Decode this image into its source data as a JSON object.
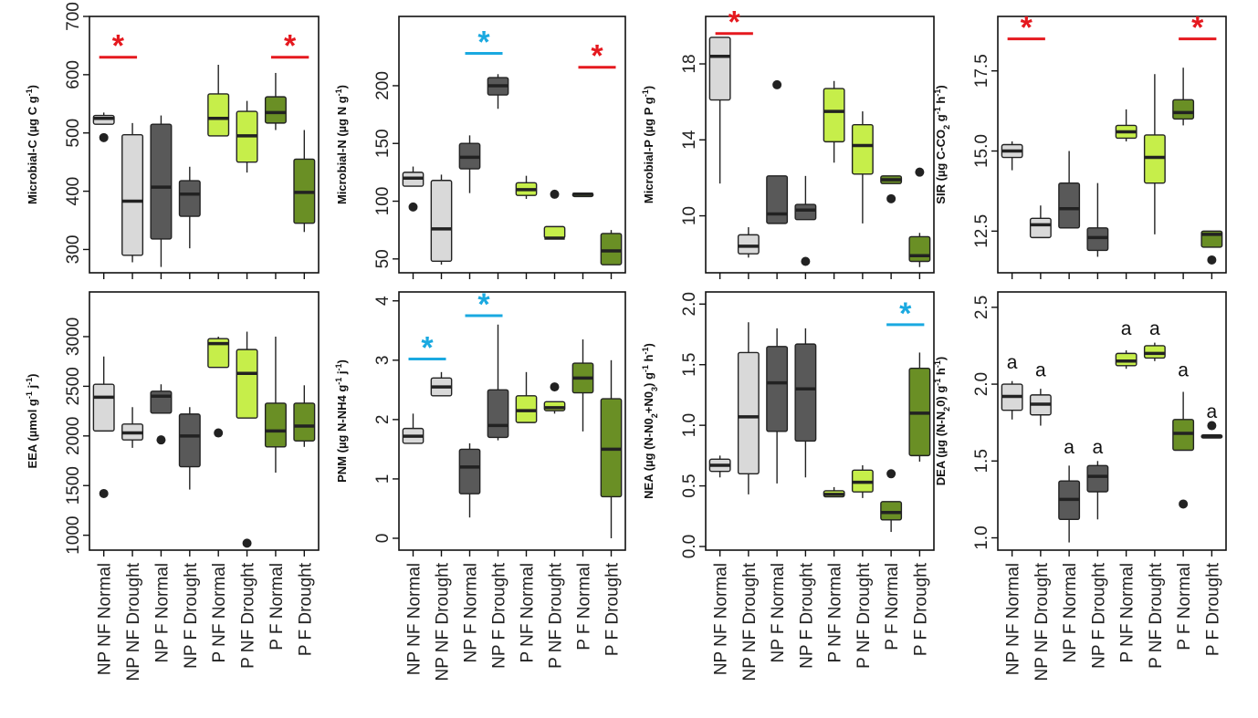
{
  "colors": {
    "NP NF": "#d9d9d9",
    "NP F": "#595959",
    "P NF": "#c6ee4a",
    "P F": "#6a8f25",
    "red": "#e5191f",
    "blue": "#1aa9e0"
  },
  "chart_data": [
    {
      "type": "box",
      "ylabel": {
        "pre": "Microbial-C (µg C g",
        "sup": "-1",
        "post": ")"
      },
      "ylim": [
        260,
        700
      ],
      "yticks": [
        "300",
        "400",
        "500",
        "600",
        "700"
      ],
      "categories": [
        "NP NF Normal",
        "NP NF Drought",
        "NP F Normal",
        "NP F Drought",
        "P NF Normal",
        "P NF Drought",
        "P F Normal",
        "P F Drought"
      ],
      "groups": [
        "NP NF",
        "NP NF",
        "NP F",
        "NP F",
        "P NF",
        "P NF",
        "P F",
        "P F"
      ],
      "boxes": [
        {
          "min": 515,
          "q1": 515,
          "median": 525,
          "q3": 530,
          "max": 535,
          "outliers": [
            492
          ]
        },
        {
          "min": 278,
          "q1": 290,
          "median": 383,
          "q3": 497,
          "max": 517,
          "outliers": []
        },
        {
          "min": 270,
          "q1": 318,
          "median": 407,
          "q3": 515,
          "max": 530,
          "outliers": []
        },
        {
          "min": 302,
          "q1": 357,
          "median": 395,
          "q3": 418,
          "max": 442,
          "outliers": []
        },
        {
          "min": 495,
          "q1": 495,
          "median": 525,
          "q3": 567,
          "max": 617,
          "outliers": []
        },
        {
          "min": 432,
          "q1": 450,
          "median": 495,
          "q3": 537,
          "max": 555,
          "outliers": []
        },
        {
          "min": 505,
          "q1": 517,
          "median": 535,
          "q3": 562,
          "max": 603,
          "outliers": []
        },
        {
          "min": 330,
          "q1": 345,
          "median": 398,
          "q3": 455,
          "max": 505,
          "outliers": []
        }
      ],
      "annotations": [
        {
          "type": "star",
          "color": "red",
          "text": "*",
          "pair": [
            0,
            1
          ],
          "y": 630
        },
        {
          "type": "star",
          "color": "red",
          "text": "*",
          "pair": [
            6,
            7
          ],
          "y": 630
        }
      ]
    },
    {
      "type": "box",
      "ylabel": {
        "pre": "Microbial-N (µg N g",
        "sup": "-1",
        "post": ")"
      },
      "ylim": [
        38,
        260
      ],
      "yticks": [
        "50",
        "100",
        "150",
        "200"
      ],
      "categories": [
        "NP NF Normal",
        "NP NF Drought",
        "NP F Normal",
        "NP F Drought",
        "P NF Normal",
        "P NF Drought",
        "P F Normal",
        "P F Drought"
      ],
      "groups": [
        "NP NF",
        "NP NF",
        "NP F",
        "NP F",
        "P NF",
        "P NF",
        "P F",
        "P F"
      ],
      "boxes": [
        {
          "min": 113,
          "q1": 113,
          "median": 120,
          "q3": 125,
          "max": 130,
          "outliers": [
            95
          ]
        },
        {
          "min": 45,
          "q1": 48,
          "median": 76,
          "q3": 118,
          "max": 123,
          "outliers": []
        },
        {
          "min": 107,
          "q1": 128,
          "median": 138,
          "q3": 150,
          "max": 157,
          "outliers": []
        },
        {
          "min": 180,
          "q1": 192,
          "median": 200,
          "q3": 207,
          "max": 210,
          "outliers": []
        },
        {
          "min": 102,
          "q1": 105,
          "median": 110,
          "q3": 116,
          "max": 122,
          "outliers": []
        },
        {
          "min": 68,
          "q1": 68,
          "median": 68,
          "q3": 78,
          "max": 78,
          "outliers": [
            106
          ]
        },
        {
          "min": 104,
          "q1": 104,
          "median": 106,
          "q3": 107,
          "max": 107,
          "outliers": []
        },
        {
          "min": 45,
          "q1": 45,
          "median": 57,
          "q3": 72,
          "max": 75,
          "outliers": []
        }
      ],
      "annotations": [
        {
          "type": "star",
          "color": "blue",
          "text": "*",
          "pair": [
            2,
            3
          ],
          "y": 228
        },
        {
          "type": "star",
          "color": "red",
          "text": "*",
          "pair": [
            6,
            7
          ],
          "y": 216
        }
      ]
    },
    {
      "type": "box",
      "ylabel": {
        "pre": "Microbial-P (µg P g",
        "sup": "-1",
        "post": ")"
      },
      "ylim": [
        7,
        20.5
      ],
      "yticks": [
        "10",
        "14",
        "18"
      ],
      "categories": [
        "NP NF Normal",
        "NP NF Drought",
        "NP F Normal",
        "NP F Drought",
        "P NF Normal",
        "P NF Drought",
        "P F Normal",
        "P F Drought"
      ],
      "groups": [
        "NP NF",
        "NP NF",
        "NP F",
        "NP F",
        "P NF",
        "P NF",
        "P F",
        "P F"
      ],
      "boxes": [
        {
          "min": 11.7,
          "q1": 16.1,
          "median": 18.4,
          "q3": 19.4,
          "max": 19.4,
          "outliers": []
        },
        {
          "min": 7.8,
          "q1": 8.0,
          "median": 8.4,
          "q3": 9.0,
          "max": 9.4,
          "outliers": []
        },
        {
          "min": 9.6,
          "q1": 9.6,
          "median": 10.1,
          "q3": 12.1,
          "max": 12.1,
          "outliers": [
            16.9
          ]
        },
        {
          "min": 9.8,
          "q1": 9.8,
          "median": 10.3,
          "q3": 10.6,
          "max": 12.1,
          "outliers": [
            7.6
          ]
        },
        {
          "min": 12.8,
          "q1": 13.9,
          "median": 15.5,
          "q3": 16.7,
          "max": 17.1,
          "outliers": []
        },
        {
          "min": 9.6,
          "q1": 12.2,
          "median": 13.7,
          "q3": 14.8,
          "max": 15.5,
          "outliers": []
        },
        {
          "min": 11.7,
          "q1": 11.7,
          "median": 11.9,
          "q3": 12.1,
          "max": 12.1,
          "outliers": [
            10.9
          ]
        },
        {
          "min": 7.3,
          "q1": 7.6,
          "median": 7.9,
          "q3": 8.9,
          "max": 9.1,
          "outliers": [
            12.3
          ]
        }
      ],
      "annotations": [
        {
          "type": "star",
          "color": "red",
          "text": "*",
          "pair": [
            0,
            1
          ],
          "y": 19.6
        }
      ]
    },
    {
      "type": "box",
      "ylabel": {
        "pre": "SIR (µg C-CO",
        "sub": "2",
        "mid": " g",
        "sup": "-1",
        "mid2": " h",
        "sup2": "-1",
        "post": ")"
      },
      "ylim": [
        11.2,
        19.2
      ],
      "yticks": [
        "12.5",
        "15.0",
        "17.5"
      ],
      "categories": [
        "NP NF Normal",
        "NP NF Drought",
        "NP F Normal",
        "NP F Drought",
        "P NF Normal",
        "P NF Drought",
        "P F Normal",
        "P F Drought"
      ],
      "groups": [
        "NP NF",
        "NP NF",
        "NP F",
        "NP F",
        "P NF",
        "P NF",
        "P F",
        "P F"
      ],
      "boxes": [
        {
          "min": 14.4,
          "q1": 14.8,
          "median": 15.0,
          "q3": 15.2,
          "max": 15.3,
          "outliers": []
        },
        {
          "min": 12.3,
          "q1": 12.3,
          "median": 12.7,
          "q3": 12.9,
          "max": 13.3,
          "outliers": []
        },
        {
          "min": 12.6,
          "q1": 12.6,
          "median": 13.2,
          "q3": 14.0,
          "max": 15.0,
          "outliers": []
        },
        {
          "min": 11.7,
          "q1": 11.9,
          "median": 12.3,
          "q3": 12.6,
          "max": 14.0,
          "outliers": []
        },
        {
          "min": 15.3,
          "q1": 15.4,
          "median": 15.6,
          "q3": 15.8,
          "max": 16.3,
          "outliers": []
        },
        {
          "min": 12.4,
          "q1": 14.0,
          "median": 14.8,
          "q3": 15.5,
          "max": 17.4,
          "outliers": []
        },
        {
          "min": 15.8,
          "q1": 16.0,
          "median": 16.2,
          "q3": 16.6,
          "max": 17.6,
          "outliers": []
        },
        {
          "min": 12.0,
          "q1": 12.0,
          "median": 12.4,
          "q3": 12.5,
          "max": 12.5,
          "outliers": [
            11.6
          ]
        }
      ],
      "annotations": [
        {
          "type": "star",
          "color": "red",
          "text": "*",
          "pair": [
            0,
            1
          ],
          "y": 18.5
        },
        {
          "type": "star",
          "color": "red",
          "text": "*",
          "pair": [
            6,
            7
          ],
          "y": 18.5
        }
      ]
    },
    {
      "type": "box",
      "ylabel": {
        "pre": "EEA (µmol g",
        "sup": "-1",
        "mid": " j",
        "sup2": "-1",
        "post": ")"
      },
      "ylim": [
        850,
        3450
      ],
      "yticks": [
        "1000",
        "1500",
        "2000",
        "2500",
        "3000"
      ],
      "categories": [
        "NP NF Normal",
        "NP NF Drought",
        "NP F Normal",
        "NP F Drought",
        "P NF Normal",
        "P NF Drought",
        "P F Normal",
        "P F Drought"
      ],
      "groups": [
        "NP NF",
        "NP NF",
        "NP F",
        "NP F",
        "P NF",
        "P NF",
        "P F",
        "P F"
      ],
      "boxes": [
        {
          "min": 2050,
          "q1": 2050,
          "median": 2390,
          "q3": 2520,
          "max": 2800,
          "outliers": [
            1420
          ]
        },
        {
          "min": 1880,
          "q1": 1960,
          "median": 2030,
          "q3": 2120,
          "max": 2290,
          "outliers": []
        },
        {
          "min": 2230,
          "q1": 2230,
          "median": 2400,
          "q3": 2450,
          "max": 2520,
          "outliers": [
            1960
          ]
        },
        {
          "min": 1460,
          "q1": 1690,
          "median": 2000,
          "q3": 2220,
          "max": 2290,
          "outliers": []
        },
        {
          "min": 2690,
          "q1": 2690,
          "median": 2930,
          "q3": 2980,
          "max": 3000,
          "outliers": [
            2030
          ]
        },
        {
          "min": 2180,
          "q1": 2180,
          "median": 2630,
          "q3": 2870,
          "max": 3050,
          "outliers": [
            920
          ]
        },
        {
          "min": 1630,
          "q1": 1890,
          "median": 2050,
          "q3": 2330,
          "max": 3000,
          "outliers": []
        },
        {
          "min": 1890,
          "q1": 1950,
          "median": 2100,
          "q3": 2330,
          "max": 2510,
          "outliers": []
        }
      ],
      "annotations": []
    },
    {
      "type": "box",
      "ylabel": {
        "pre": "PNM (µg N-NH4 g",
        "sup": "-1",
        "mid": " j",
        "sup2": "-1",
        "post": ")"
      },
      "ylim": [
        -0.2,
        4.15
      ],
      "yticks": [
        "0",
        "1",
        "2",
        "3",
        "4"
      ],
      "categories": [
        "NP NF Normal",
        "NP NF Drought",
        "NP F Normal",
        "NP F Drought",
        "P NF Normal",
        "P NF Drought",
        "P F Normal",
        "P F Drought"
      ],
      "groups": [
        "NP NF",
        "NP NF",
        "NP F",
        "NP F",
        "P NF",
        "P NF",
        "P F",
        "P F"
      ],
      "boxes": [
        {
          "min": 1.6,
          "q1": 1.6,
          "median": 1.72,
          "q3": 1.85,
          "max": 2.1,
          "outliers": []
        },
        {
          "min": 2.4,
          "q1": 2.4,
          "median": 2.55,
          "q3": 2.7,
          "max": 2.8,
          "outliers": []
        },
        {
          "min": 0.35,
          "q1": 0.75,
          "median": 1.2,
          "q3": 1.5,
          "max": 1.6,
          "outliers": []
        },
        {
          "min": 1.65,
          "q1": 1.7,
          "median": 1.9,
          "q3": 2.5,
          "max": 3.6,
          "outliers": []
        },
        {
          "min": 1.95,
          "q1": 1.95,
          "median": 2.15,
          "q3": 2.4,
          "max": 2.8,
          "outliers": []
        },
        {
          "min": 2.1,
          "q1": 2.15,
          "median": 2.2,
          "q3": 2.3,
          "max": 2.3,
          "outliers": [
            2.55
          ]
        },
        {
          "min": 1.8,
          "q1": 2.45,
          "median": 2.7,
          "q3": 2.95,
          "max": 3.35,
          "outliers": []
        },
        {
          "min": 0.0,
          "q1": 0.7,
          "median": 1.5,
          "q3": 2.35,
          "max": 3.0,
          "outliers": []
        }
      ],
      "annotations": [
        {
          "type": "star",
          "color": "blue",
          "text": "*",
          "pair": [
            0,
            1
          ],
          "y": 3.02
        },
        {
          "type": "star",
          "color": "blue",
          "text": "*",
          "pair": [
            2,
            3
          ],
          "y": 3.75
        }
      ]
    },
    {
      "type": "box",
      "ylabel": {
        "pre": "NEA (µg (N-N0",
        "sub": "2",
        "mid": "+N0",
        "sub2": "3",
        "mid2": ") g",
        "sup": "-1",
        "mid3": " h",
        "sup2": "-1",
        "post": ")"
      },
      "ylim": [
        -0.03,
        2.1
      ],
      "yticks": [
        "0.0",
        "0.5",
        "1.0",
        "1.5",
        "2.0"
      ],
      "categories": [
        "NP NF Normal",
        "NP NF Drought",
        "NP F Normal",
        "NP F Drought",
        "P NF Normal",
        "P NF Drought",
        "P F Normal",
        "P F Drought"
      ],
      "groups": [
        "NP NF",
        "NP NF",
        "NP F",
        "NP F",
        "P NF",
        "P NF",
        "P F",
        "P F"
      ],
      "boxes": [
        {
          "min": 0.57,
          "q1": 0.62,
          "median": 0.67,
          "q3": 0.72,
          "max": 0.75,
          "outliers": []
        },
        {
          "min": 0.43,
          "q1": 0.6,
          "median": 1.07,
          "q3": 1.6,
          "max": 1.85,
          "outliers": []
        },
        {
          "min": 0.52,
          "q1": 0.95,
          "median": 1.35,
          "q3": 1.65,
          "max": 1.8,
          "outliers": []
        },
        {
          "min": 0.57,
          "q1": 0.87,
          "median": 1.3,
          "q3": 1.67,
          "max": 1.8,
          "outliers": []
        },
        {
          "min": 0.41,
          "q1": 0.41,
          "median": 0.43,
          "q3": 0.46,
          "max": 0.49,
          "outliers": []
        },
        {
          "min": 0.4,
          "q1": 0.45,
          "median": 0.53,
          "q3": 0.63,
          "max": 0.67,
          "outliers": []
        },
        {
          "min": 0.12,
          "q1": 0.22,
          "median": 0.28,
          "q3": 0.37,
          "max": 0.37,
          "outliers": [
            0.6
          ]
        },
        {
          "min": 0.7,
          "q1": 0.75,
          "median": 1.1,
          "q3": 1.47,
          "max": 1.6,
          "outliers": []
        }
      ],
      "annotations": [
        {
          "type": "star",
          "color": "blue",
          "text": "*",
          "pair": [
            6,
            7
          ],
          "y": 1.83
        }
      ]
    },
    {
      "type": "box",
      "ylabel": {
        "pre": "DEA (µg (N-N",
        "sub": "2",
        "mid": "0) g",
        "sup": "-1",
        "mid2": " h",
        "sup2": "-1",
        "post": ")"
      },
      "ylim": [
        0.92,
        2.6
      ],
      "yticks": [
        "1.0",
        "1.5",
        "2.0",
        "2.5"
      ],
      "categories": [
        "NP NF Normal",
        "NP NF Drought",
        "NP F Normal",
        "NP F Drought",
        "P NF Normal",
        "P NF Drought",
        "P F Normal",
        "P F Drought"
      ],
      "groups": [
        "NP NF",
        "NP NF",
        "NP F",
        "NP F",
        "P NF",
        "P NF",
        "P F",
        "P F"
      ],
      "boxes": [
        {
          "min": 1.77,
          "q1": 1.83,
          "median": 1.92,
          "q3": 2.0,
          "max": 2.02,
          "outliers": []
        },
        {
          "min": 1.73,
          "q1": 1.8,
          "median": 1.87,
          "q3": 1.93,
          "max": 1.97,
          "outliers": []
        },
        {
          "min": 0.97,
          "q1": 1.12,
          "median": 1.25,
          "q3": 1.37,
          "max": 1.47,
          "outliers": []
        },
        {
          "min": 1.12,
          "q1": 1.3,
          "median": 1.4,
          "q3": 1.47,
          "max": 1.5,
          "outliers": []
        },
        {
          "min": 2.1,
          "q1": 2.12,
          "median": 2.15,
          "q3": 2.2,
          "max": 2.22,
          "outliers": []
        },
        {
          "min": 2.15,
          "q1": 2.17,
          "median": 2.2,
          "q3": 2.25,
          "max": 2.27,
          "outliers": []
        },
        {
          "min": 1.57,
          "q1": 1.57,
          "median": 1.68,
          "q3": 1.77,
          "max": 1.95,
          "outliers": [
            1.22
          ]
        },
        {
          "min": 1.65,
          "q1": 1.65,
          "median": 1.66,
          "q3": 1.67,
          "max": 1.67,
          "outliers": [
            1.73
          ]
        }
      ],
      "annotations": [
        {
          "type": "letter",
          "text": "a",
          "idx": 0,
          "y": 2.1
        },
        {
          "type": "letter",
          "text": "a",
          "idx": 1,
          "y": 2.05
        },
        {
          "type": "letter",
          "text": "a",
          "idx": 2,
          "y": 1.55
        },
        {
          "type": "letter",
          "text": "a",
          "idx": 3,
          "y": 1.55
        },
        {
          "type": "letter",
          "text": "a",
          "idx": 4,
          "y": 2.32
        },
        {
          "type": "letter",
          "text": "a",
          "idx": 5,
          "y": 2.32
        },
        {
          "type": "letter",
          "text": "a",
          "idx": 6,
          "y": 2.05
        },
        {
          "type": "letter",
          "text": "a",
          "idx": 7,
          "y": 1.78
        }
      ]
    }
  ]
}
